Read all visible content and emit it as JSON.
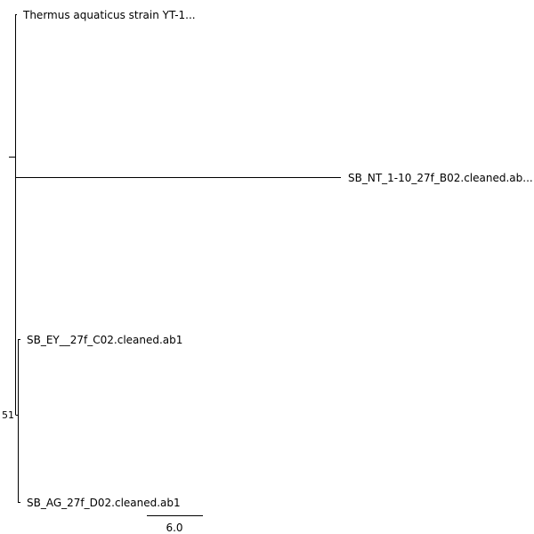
{
  "tree": {
    "tips": {
      "thermus": "Thermus aquaticus strain YT-1...",
      "sb_nt": "SB_NT_1-10_27f_B02.cleaned.ab...",
      "sb_ey": "SB_EY__27f_C02.cleaned.ab1",
      "sb_ag": "SB_AG_27f_D02.cleaned.ab1"
    },
    "node_labels": {
      "clade_ey_ag": "51"
    }
  },
  "scale_bar": {
    "label": "6.0"
  }
}
